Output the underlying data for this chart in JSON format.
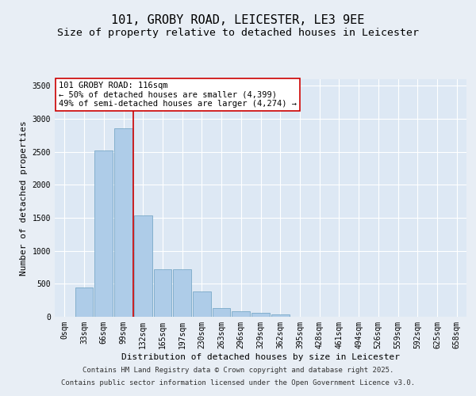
{
  "title1": "101, GROBY ROAD, LEICESTER, LE3 9EE",
  "title2": "Size of property relative to detached houses in Leicester",
  "xlabel": "Distribution of detached houses by size in Leicester",
  "ylabel": "Number of detached properties",
  "categories": [
    "0sqm",
    "33sqm",
    "66sqm",
    "99sqm",
    "132sqm",
    "165sqm",
    "197sqm",
    "230sqm",
    "263sqm",
    "296sqm",
    "329sqm",
    "362sqm",
    "395sqm",
    "428sqm",
    "461sqm",
    "494sqm",
    "526sqm",
    "559sqm",
    "592sqm",
    "625sqm",
    "658sqm"
  ],
  "bar_heights": [
    5,
    450,
    2520,
    2860,
    1540,
    720,
    720,
    380,
    130,
    90,
    60,
    40,
    5,
    2,
    1,
    1,
    0,
    0,
    0,
    0,
    0
  ],
  "bar_color": "#aecce8",
  "bar_edge_color": "#6a9fc0",
  "vline_x": 3.52,
  "vline_color": "#cc0000",
  "annotation_text": "101 GROBY ROAD: 116sqm\n← 50% of detached houses are smaller (4,399)\n49% of semi-detached houses are larger (4,274) →",
  "annotation_box_color": "#ffffff",
  "annotation_box_edge_color": "#cc0000",
  "ylim": [
    0,
    3600
  ],
  "yticks": [
    0,
    500,
    1000,
    1500,
    2000,
    2500,
    3000,
    3500
  ],
  "background_color": "#dde8f4",
  "fig_background_color": "#e8eef5",
  "footer_line1": "Contains HM Land Registry data © Crown copyright and database right 2025.",
  "footer_line2": "Contains public sector information licensed under the Open Government Licence v3.0.",
  "title_fontsize": 11,
  "subtitle_fontsize": 9.5,
  "axis_label_fontsize": 8,
  "tick_fontsize": 7,
  "annotation_fontsize": 7.5,
  "footer_fontsize": 6.5
}
